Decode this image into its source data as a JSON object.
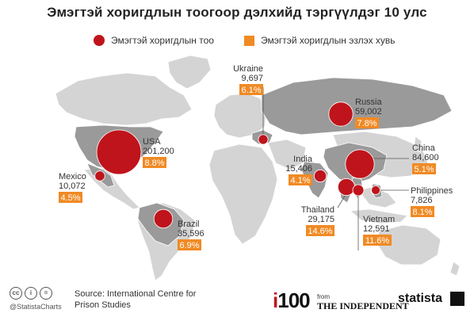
{
  "chart_data": {
    "type": "bubble-map",
    "title": "Эмэгтэй хоригдлын тоогоор дэлхийд тэргүүлдэг 10 улс",
    "legend": [
      {
        "label": "Эмэгтэй хоригдлын тоо",
        "shape": "circle",
        "color": "#c0141c"
      },
      {
        "label": "Эмэгтэй хоригдлын эзлэх хувь",
        "shape": "square",
        "color": "#f08a24"
      }
    ],
    "countries": [
      {
        "name": "USA",
        "count": "201,200",
        "value": 201200,
        "pct": "8.8%"
      },
      {
        "name": "China",
        "count": "84,600",
        "value": 84600,
        "pct": "5.1%"
      },
      {
        "name": "Russia",
        "count": "59,002",
        "value": 59002,
        "pct": "7.8%"
      },
      {
        "name": "Brazil",
        "count": "35,596",
        "value": 35596,
        "pct": "6.9%"
      },
      {
        "name": "Thailand",
        "count": "29,175",
        "value": 29175,
        "pct": "14.6%"
      },
      {
        "name": "India",
        "count": "15,406",
        "value": 15406,
        "pct": "4.1%"
      },
      {
        "name": "Vietnam",
        "count": "12,591",
        "value": 12591,
        "pct": "11.6%"
      },
      {
        "name": "Mexico",
        "count": "10,072",
        "value": 10072,
        "pct": "4.5%"
      },
      {
        "name": "Ukraine",
        "count": "9,697",
        "value": 9697,
        "pct": "6.1%"
      },
      {
        "name": "Philippines",
        "count": "7,826",
        "value": 7826,
        "pct": "8.1%"
      }
    ]
  },
  "footer": {
    "cc_icons": [
      "cc",
      "i",
      "="
    ],
    "handle": "@StatistaCharts",
    "source": "Source: International Centre for Prison Studies",
    "i100": "i100",
    "from_label": "from",
    "independent": "THE INDEPENDENT",
    "statista": "statista"
  },
  "colors": {
    "bubble": "#c0141c",
    "pct_box": "#f08a24",
    "land": "#d4d4d4",
    "highlight": "#9a9a9a"
  }
}
